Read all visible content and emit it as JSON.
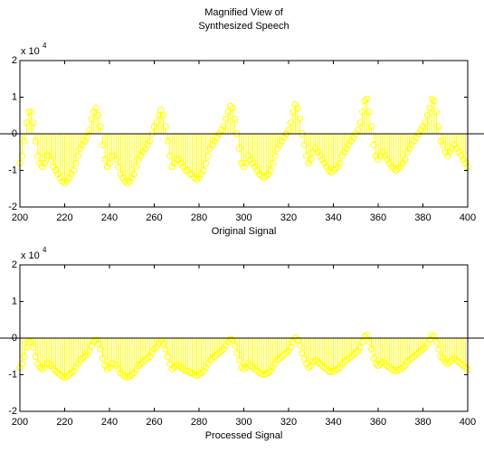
{
  "chart_data": [
    {
      "type": "stem",
      "title": [
        "Magnified View of",
        "Synthesized Speech"
      ],
      "xlabel": "Original Signal",
      "color": "#ffff00",
      "y_multiplier": {
        "base": "x 10",
        "exponent": "4"
      },
      "xlim": [
        200,
        400
      ],
      "xticks": [
        200,
        220,
        240,
        260,
        280,
        300,
        320,
        340,
        360,
        380,
        400
      ],
      "ylim": [
        -20000,
        20000
      ],
      "yticks": [
        {
          "value": -20000,
          "label": "-2"
        },
        {
          "value": -10000,
          "label": "-1"
        },
        {
          "value": 0,
          "label": "0"
        },
        {
          "value": 10000,
          "label": "1"
        },
        {
          "value": 20000,
          "label": "2"
        }
      ],
      "x": [
        200,
        201,
        202,
        203,
        204,
        205,
        206,
        207,
        208,
        209,
        210,
        211,
        212,
        213,
        214,
        215,
        216,
        217,
        218,
        219,
        220,
        221,
        222,
        223,
        224,
        225,
        226,
        227,
        228,
        229,
        230,
        231,
        232,
        233,
        234,
        235,
        236,
        237,
        238,
        239,
        240,
        241,
        242,
        243,
        244,
        245,
        246,
        247,
        248,
        249,
        250,
        251,
        252,
        253,
        254,
        255,
        256,
        257,
        258,
        259,
        260,
        261,
        262,
        263,
        264,
        265,
        266,
        267,
        268,
        269,
        270,
        271,
        272,
        273,
        274,
        275,
        276,
        277,
        278,
        279,
        280,
        281,
        282,
        283,
        284,
        285,
        286,
        287,
        288,
        289,
        290,
        291,
        292,
        293,
        294,
        295,
        296,
        297,
        298,
        299,
        300,
        301,
        302,
        303,
        304,
        305,
        306,
        307,
        308,
        309,
        310,
        311,
        312,
        313,
        314,
        315,
        316,
        317,
        318,
        319,
        320,
        321,
        322,
        323,
        324,
        325,
        326,
        327,
        328,
        329,
        330,
        331,
        332,
        333,
        334,
        335,
        336,
        337,
        338,
        339,
        340,
        341,
        342,
        343,
        344,
        345,
        346,
        347,
        348,
        349,
        350,
        351,
        352,
        353,
        354,
        355,
        356,
        357,
        358,
        359,
        360,
        361,
        362,
        363,
        364,
        365,
        366,
        367,
        368,
        369,
        370,
        371,
        372,
        373,
        374,
        375,
        376,
        377,
        378,
        379,
        380,
        381,
        382,
        383,
        384,
        385,
        386,
        387,
        388,
        389,
        390,
        391,
        392,
        393,
        394,
        395,
        396,
        397,
        398,
        399,
        400
      ],
      "values": [
        -8000,
        -6000,
        -2000,
        3000,
        6000,
        6000,
        3000,
        -2000,
        -6000,
        -8000,
        -9000,
        -8000,
        -6000,
        -6000,
        -7000,
        -9000,
        -10000,
        -11000,
        -12000,
        -13000,
        -13500,
        -13000,
        -12000,
        -11000,
        -10000,
        -8000,
        -6000,
        -4000,
        -3000,
        -2000,
        -1000,
        1000,
        4000,
        6000,
        7000,
        5000,
        2000,
        -3000,
        -7000,
        -9000,
        -8000,
        -6000,
        -6000,
        -7000,
        -9000,
        -11000,
        -12000,
        -13000,
        -13500,
        -13000,
        -12000,
        -11000,
        -9000,
        -7000,
        -6000,
        -5000,
        -4000,
        -3000,
        -2000,
        0,
        2000,
        3000,
        5000,
        6500,
        5000,
        2000,
        -2000,
        -6000,
        -9000,
        -8000,
        -7000,
        -7000,
        -8000,
        -9000,
        -10000,
        -10000,
        -11000,
        -11000,
        -12000,
        -12500,
        -12000,
        -11000,
        -10000,
        -8000,
        -6000,
        -4000,
        -3000,
        -2000,
        -1000,
        0,
        1000,
        2000,
        4000,
        6000,
        7500,
        7000,
        4000,
        0,
        -4000,
        -8000,
        -9000,
        -8000,
        -6000,
        -7000,
        -8000,
        -9000,
        -10000,
        -11000,
        -11500,
        -12000,
        -11500,
        -11000,
        -10000,
        -8000,
        -6000,
        -4000,
        -3000,
        -2000,
        -1000,
        0,
        1000,
        3000,
        6000,
        8000,
        7000,
        4000,
        0,
        -3000,
        -6000,
        -8000,
        -7000,
        -5000,
        -4000,
        -5000,
        -6000,
        -7000,
        -8000,
        -9000,
        -10000,
        -10500,
        -10000,
        -9500,
        -9000,
        -8000,
        -6000,
        -5000,
        -4000,
        -3000,
        -2000,
        -1000,
        0,
        1000,
        3000,
        6000,
        9000,
        9500,
        6000,
        2000,
        -3000,
        -6000,
        -7000,
        -6000,
        -5000,
        -6000,
        -7000,
        -8000,
        -9000,
        -9500,
        -10000,
        -9500,
        -9000,
        -8000,
        -7000,
        -5000,
        -4000,
        -3000,
        -2000,
        -1000,
        0,
        1000,
        2000,
        3000,
        5000,
        7000,
        9500,
        9000,
        6000,
        2000,
        -2000,
        -3000,
        -5000,
        -6000,
        -5000,
        -4000,
        -3000,
        -4000,
        -5000,
        -6000,
        -7000,
        -8000,
        -9000
      ]
    },
    {
      "type": "stem",
      "xlabel": "Processed Signal",
      "color": "#ffff00",
      "y_multiplier": {
        "base": "x 10",
        "exponent": "4"
      },
      "xlim": [
        200,
        400
      ],
      "xticks": [
        200,
        220,
        240,
        260,
        280,
        300,
        320,
        340,
        360,
        380,
        400
      ],
      "ylim": [
        -20000,
        20000
      ],
      "yticks": [
        {
          "value": -20000,
          "label": "-2"
        },
        {
          "value": -10000,
          "label": "-1"
        },
        {
          "value": 0,
          "label": "0"
        },
        {
          "value": 10000,
          "label": "1"
        },
        {
          "value": 20000,
          "label": "2"
        }
      ],
      "x": [
        200,
        201,
        202,
        203,
        204,
        205,
        206,
        207,
        208,
        209,
        210,
        211,
        212,
        213,
        214,
        215,
        216,
        217,
        218,
        219,
        220,
        221,
        222,
        223,
        224,
        225,
        226,
        227,
        228,
        229,
        230,
        231,
        232,
        233,
        234,
        235,
        236,
        237,
        238,
        239,
        240,
        241,
        242,
        243,
        244,
        245,
        246,
        247,
        248,
        249,
        250,
        251,
        252,
        253,
        254,
        255,
        256,
        257,
        258,
        259,
        260,
        261,
        262,
        263,
        264,
        265,
        266,
        267,
        268,
        269,
        270,
        271,
        272,
        273,
        274,
        275,
        276,
        277,
        278,
        279,
        280,
        281,
        282,
        283,
        284,
        285,
        286,
        287,
        288,
        289,
        290,
        291,
        292,
        293,
        294,
        295,
        296,
        297,
        298,
        299,
        300,
        301,
        302,
        303,
        304,
        305,
        306,
        307,
        308,
        309,
        310,
        311,
        312,
        313,
        314,
        315,
        316,
        317,
        318,
        319,
        320,
        321,
        322,
        323,
        324,
        325,
        326,
        327,
        328,
        329,
        330,
        331,
        332,
        333,
        334,
        335,
        336,
        337,
        338,
        339,
        340,
        341,
        342,
        343,
        344,
        345,
        346,
        347,
        348,
        349,
        350,
        351,
        352,
        353,
        354,
        355,
        356,
        357,
        358,
        359,
        360,
        361,
        362,
        363,
        364,
        365,
        366,
        367,
        368,
        369,
        370,
        371,
        372,
        373,
        374,
        375,
        376,
        377,
        378,
        379,
        380,
        381,
        382,
        383,
        384,
        385,
        386,
        387,
        388,
        389,
        390,
        391,
        392,
        393,
        394,
        395,
        396,
        397,
        398,
        399,
        400
      ],
      "values": [
        -8000,
        -7000,
        -5000,
        -2500,
        -1000,
        -1000,
        -2500,
        -5000,
        -7000,
        -8000,
        -8500,
        -8000,
        -7000,
        -7000,
        -7500,
        -8500,
        -9000,
        -9500,
        -10000,
        -10500,
        -10750,
        -10500,
        -10000,
        -9500,
        -9000,
        -8000,
        -7000,
        -6000,
        -5500,
        -5000,
        -4500,
        -3500,
        -2000,
        -1000,
        -500,
        -1500,
        -3000,
        -5500,
        -7500,
        -8500,
        -8000,
        -7000,
        -7000,
        -7500,
        -8500,
        -9500,
        -10000,
        -10500,
        -10750,
        -10500,
        -10000,
        -9500,
        -8500,
        -7500,
        -7000,
        -6500,
        -6000,
        -5500,
        -5000,
        -4000,
        -3000,
        -2500,
        -1500,
        -750,
        -1500,
        -3000,
        -5000,
        -7000,
        -8500,
        -8000,
        -7500,
        -7500,
        -8000,
        -8500,
        -9000,
        -9000,
        -9500,
        -9500,
        -10000,
        -10250,
        -10000,
        -9500,
        -9000,
        -8000,
        -7000,
        -6000,
        -5500,
        -5000,
        -4500,
        -4000,
        -3500,
        -3000,
        -2000,
        -1000,
        -250,
        -500,
        -2000,
        -4000,
        -6000,
        -8000,
        -8500,
        -8000,
        -7000,
        -7500,
        -8000,
        -8500,
        -9000,
        -9500,
        -9750,
        -10000,
        -9750,
        -9500,
        -9000,
        -8000,
        -7000,
        -6000,
        -5500,
        -5000,
        -4500,
        -4000,
        -3500,
        -2500,
        -1000,
        0,
        -500,
        -2000,
        -4000,
        -5500,
        -7000,
        -8000,
        -7500,
        -6500,
        -6000,
        -6500,
        -7000,
        -7500,
        -8000,
        -8500,
        -9000,
        -9250,
        -9000,
        -8750,
        -8500,
        -8000,
        -7000,
        -6500,
        -6000,
        -5500,
        -5000,
        -4500,
        -4000,
        -3500,
        -2500,
        -1000,
        500,
        750,
        -1000,
        -3000,
        -5500,
        -7000,
        -7500,
        -7000,
        -6500,
        -7000,
        -7500,
        -8000,
        -8500,
        -8750,
        -9000,
        -8750,
        -8500,
        -8000,
        -7500,
        -6500,
        -6000,
        -5500,
        -5000,
        -4500,
        -4000,
        -3500,
        -3000,
        -2500,
        -1500,
        -500,
        750,
        500,
        -1000,
        -3000,
        -5000,
        -5500,
        -6500,
        -7000,
        -6500,
        -6000,
        -5500,
        -6000,
        -6500,
        -7000,
        -7500,
        -8000,
        -8500
      ]
    }
  ]
}
